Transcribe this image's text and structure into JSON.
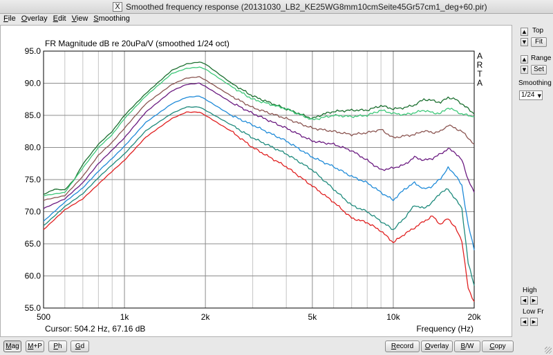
{
  "window": {
    "title": "Smoothed frequency response (20131030_LB2_KE25WG8mm10cmSeite45Gr57cm1_deg+60.pir)",
    "title_icon": "x11-icon"
  },
  "menubar": [
    {
      "label": "File",
      "underline": "F",
      "rest": "ile"
    },
    {
      "label": "Overlay",
      "underline": "O",
      "rest": "verlay"
    },
    {
      "label": "Edit",
      "underline": "E",
      "rest": "dit"
    },
    {
      "label": "View",
      "underline": "V",
      "rest": "iew"
    },
    {
      "label": "Smoothing",
      "underline": "S",
      "rest": "moothing"
    }
  ],
  "chart_data": {
    "type": "line",
    "title": "FR Magnitude dB re 20uPa/V (smoothed 1/24 oct)",
    "brand_letters": [
      "A",
      "R",
      "T",
      "A"
    ],
    "xscale": "log",
    "xlim": [
      500,
      20000
    ],
    "ylim": [
      55,
      95
    ],
    "x_ticks": [
      500,
      1000,
      2000,
      5000,
      10000,
      20000
    ],
    "x_tick_labels": [
      "500",
      "1k",
      "2k",
      "5k",
      "10k",
      "20k"
    ],
    "y_ticks": [
      55,
      60,
      65,
      70,
      75,
      80,
      85,
      90,
      95
    ],
    "y_tick_labels": [
      "55.0",
      "60.0",
      "65.0",
      "70.0",
      "75.0",
      "80.0",
      "85.0",
      "90.0",
      "95.0"
    ],
    "xlabel": "Frequency (Hz)",
    "grid": true,
    "cursor_readout": "Cursor: 504.2 Hz, 67.16 dB",
    "series": [
      {
        "color": "#1a6e2e",
        "points": [
          [
            500,
            72.7
          ],
          [
            550,
            73.5
          ],
          [
            600,
            73.4
          ],
          [
            650,
            75.0
          ],
          [
            700,
            77.4
          ],
          [
            800,
            80.5
          ],
          [
            900,
            82.5
          ],
          [
            1000,
            85.0
          ],
          [
            1200,
            88.4
          ],
          [
            1500,
            92.0
          ],
          [
            1700,
            93.0
          ],
          [
            1900,
            93.3
          ],
          [
            2000,
            93.0
          ],
          [
            2500,
            90.0
          ],
          [
            3000,
            88.0
          ],
          [
            4000,
            86.0
          ],
          [
            5000,
            84.5
          ],
          [
            5500,
            85.2
          ],
          [
            6000,
            85.6
          ],
          [
            7000,
            85.8
          ],
          [
            8000,
            85.8
          ],
          [
            9000,
            86.5
          ],
          [
            10000,
            86.0
          ],
          [
            11000,
            86.2
          ],
          [
            12000,
            86.6
          ],
          [
            13000,
            87.5
          ],
          [
            14000,
            87.3
          ],
          [
            15000,
            87.0
          ],
          [
            16000,
            87.8
          ],
          [
            17000,
            87.5
          ],
          [
            18000,
            86.8
          ],
          [
            19000,
            86.0
          ],
          [
            20000,
            85.2
          ]
        ]
      },
      {
        "color": "#3cc878",
        "points": [
          [
            500,
            72.5
          ],
          [
            600,
            73.0
          ],
          [
            700,
            76.8
          ],
          [
            800,
            80.0
          ],
          [
            900,
            82.0
          ],
          [
            1000,
            84.5
          ],
          [
            1200,
            88.0
          ],
          [
            1500,
            91.5
          ],
          [
            1700,
            92.3
          ],
          [
            1900,
            92.5
          ],
          [
            2000,
            92.2
          ],
          [
            2500,
            89.5
          ],
          [
            3000,
            87.5
          ],
          [
            4000,
            86.0
          ],
          [
            5000,
            84.3
          ],
          [
            6000,
            85.0
          ],
          [
            7000,
            84.8
          ],
          [
            8000,
            85.0
          ],
          [
            9000,
            85.8
          ],
          [
            10000,
            85.3
          ],
          [
            11000,
            85.1
          ],
          [
            12000,
            85.4
          ],
          [
            13000,
            85.8
          ],
          [
            14000,
            85.4
          ],
          [
            15000,
            85.3
          ],
          [
            16000,
            86.2
          ],
          [
            17000,
            85.7
          ],
          [
            18000,
            85.2
          ],
          [
            19000,
            85.0
          ],
          [
            20000,
            84.8
          ]
        ]
      },
      {
        "color": "#8a5450",
        "points": [
          [
            500,
            71.8
          ],
          [
            600,
            72.5
          ],
          [
            700,
            75.5
          ],
          [
            800,
            78.8
          ],
          [
            900,
            80.8
          ],
          [
            1000,
            83.0
          ],
          [
            1200,
            86.8
          ],
          [
            1500,
            89.8
          ],
          [
            1700,
            90.8
          ],
          [
            1900,
            91.0
          ],
          [
            2000,
            90.5
          ],
          [
            2500,
            88.0
          ],
          [
            3000,
            86.2
          ],
          [
            4000,
            84.5
          ],
          [
            5000,
            83.0
          ],
          [
            6000,
            82.5
          ],
          [
            7000,
            82.0
          ],
          [
            8000,
            82.3
          ],
          [
            9000,
            82.8
          ],
          [
            10000,
            81.5
          ],
          [
            11000,
            81.8
          ],
          [
            12000,
            82.0
          ],
          [
            13000,
            82.6
          ],
          [
            14000,
            82.3
          ],
          [
            15000,
            82.5
          ],
          [
            16000,
            83.5
          ],
          [
            17000,
            83.0
          ],
          [
            18000,
            82.5
          ],
          [
            19000,
            81.5
          ],
          [
            20000,
            80.5
          ]
        ]
      },
      {
        "color": "#6a1a80",
        "points": [
          [
            500,
            70.5
          ],
          [
            600,
            72.0
          ],
          [
            700,
            74.5
          ],
          [
            800,
            77.5
          ],
          [
            900,
            79.6
          ],
          [
            1000,
            81.5
          ],
          [
            1200,
            85.5
          ],
          [
            1500,
            88.8
          ],
          [
            1700,
            89.8
          ],
          [
            1900,
            90.0
          ],
          [
            2000,
            89.5
          ],
          [
            2500,
            87.0
          ],
          [
            3000,
            85.3
          ],
          [
            4000,
            83.0
          ],
          [
            5000,
            81.0
          ],
          [
            6000,
            80.5
          ],
          [
            7000,
            79.5
          ],
          [
            8000,
            78.0
          ],
          [
            9000,
            76.5
          ],
          [
            10000,
            76.8
          ],
          [
            11000,
            77.3
          ],
          [
            12000,
            78.5
          ],
          [
            13000,
            78.0
          ],
          [
            14000,
            78.3
          ],
          [
            15000,
            79.0
          ],
          [
            16000,
            79.8
          ],
          [
            17000,
            79.2
          ],
          [
            18000,
            78.0
          ],
          [
            19000,
            75.0
          ],
          [
            20000,
            73.0
          ]
        ]
      },
      {
        "color": "#1e8ad8",
        "points": [
          [
            500,
            68.5
          ],
          [
            600,
            71.5
          ],
          [
            700,
            73.7
          ],
          [
            800,
            76.3
          ],
          [
            900,
            78.3
          ],
          [
            1000,
            80.2
          ],
          [
            1200,
            83.9
          ],
          [
            1500,
            86.8
          ],
          [
            1700,
            87.8
          ],
          [
            1900,
            88.0
          ],
          [
            2000,
            87.5
          ],
          [
            2500,
            85.0
          ],
          [
            3000,
            83.5
          ],
          [
            4000,
            81.0
          ],
          [
            5000,
            78.5
          ],
          [
            6000,
            77.0
          ],
          [
            7000,
            75.5
          ],
          [
            8000,
            74.5
          ],
          [
            9000,
            73.0
          ],
          [
            10000,
            71.8
          ],
          [
            11000,
            73.5
          ],
          [
            12000,
            74.5
          ],
          [
            13000,
            73.5
          ],
          [
            14000,
            74.0
          ],
          [
            15000,
            75.2
          ],
          [
            16000,
            76.8
          ],
          [
            17000,
            75.8
          ],
          [
            18000,
            74.0
          ],
          [
            19000,
            68.0
          ],
          [
            20000,
            64.0
          ]
        ]
      },
      {
        "color": "#1e8a7c",
        "points": [
          [
            500,
            67.8
          ],
          [
            600,
            70.8
          ],
          [
            700,
            72.8
          ],
          [
            800,
            75.3
          ],
          [
            900,
            77.3
          ],
          [
            1000,
            79.0
          ],
          [
            1200,
            82.6
          ],
          [
            1500,
            85.3
          ],
          [
            1700,
            86.3
          ],
          [
            1900,
            86.3
          ],
          [
            2000,
            85.8
          ],
          [
            2500,
            83.5
          ],
          [
            3000,
            81.5
          ],
          [
            4000,
            79.0
          ],
          [
            5000,
            76.5
          ],
          [
            6000,
            73.5
          ],
          [
            7000,
            71.0
          ],
          [
            8000,
            70.0
          ],
          [
            9000,
            68.5
          ],
          [
            10000,
            67.2
          ],
          [
            11000,
            69.0
          ],
          [
            12000,
            71.0
          ],
          [
            13000,
            70.5
          ],
          [
            14000,
            71.5
          ],
          [
            15000,
            73.0
          ],
          [
            16000,
            73.5
          ],
          [
            17000,
            72.0
          ],
          [
            18000,
            70.5
          ],
          [
            19000,
            62.0
          ],
          [
            20000,
            58.5
          ]
        ]
      },
      {
        "color": "#e02020",
        "points": [
          [
            500,
            67.2
          ],
          [
            600,
            70.3
          ],
          [
            700,
            72.0
          ],
          [
            800,
            74.3
          ],
          [
            900,
            76.3
          ],
          [
            1000,
            78.0
          ],
          [
            1200,
            81.6
          ],
          [
            1500,
            84.5
          ],
          [
            1700,
            85.5
          ],
          [
            1900,
            85.5
          ],
          [
            2000,
            85.0
          ],
          [
            2500,
            82.5
          ],
          [
            3000,
            80.0
          ],
          [
            4000,
            77.0
          ],
          [
            5000,
            74.0
          ],
          [
            6000,
            71.5
          ],
          [
            7000,
            69.0
          ],
          [
            8000,
            68.3
          ],
          [
            9000,
            67.0
          ],
          [
            10000,
            65.2
          ],
          [
            11000,
            66.5
          ],
          [
            12000,
            67.5
          ],
          [
            13000,
            68.5
          ],
          [
            14000,
            69.3
          ],
          [
            15000,
            68.0
          ],
          [
            16000,
            69.0
          ],
          [
            17000,
            67.5
          ],
          [
            18000,
            65.5
          ],
          [
            19000,
            58.0
          ],
          [
            20000,
            56.0
          ]
        ]
      }
    ]
  },
  "rightpanel": {
    "top_label": "Top",
    "fit_label": "Fit",
    "range_label": "Range",
    "set_label": "Set",
    "smoothing_label": "Smoothing",
    "smoothing_value": "1/24",
    "high_label": "High",
    "low_label": "Low Fr",
    "up_glyph": "▲",
    "down_glyph": "▼",
    "left_glyph": "◀",
    "right_glyph": "▶",
    "caret_glyph": "▼"
  },
  "bottombar": {
    "left_tabs": [
      {
        "name": "tab-mag",
        "u": "M",
        "rest": "ag",
        "active": true
      },
      {
        "name": "tab-mp",
        "u": "M",
        "rest": "+P",
        "active": false
      },
      {
        "name": "tab-ph",
        "u": "P",
        "rest": "h",
        "active": false
      },
      {
        "name": "tab-gd",
        "u": "G",
        "rest": "d",
        "active": false
      }
    ],
    "right_buttons": [
      {
        "name": "record-button",
        "u": "R",
        "rest": "ecord"
      },
      {
        "name": "overlay-button",
        "u": "O",
        "rest": "verlay"
      },
      {
        "name": "bw-button",
        "u": "B",
        "rest": "/W"
      },
      {
        "name": "copy-button",
        "u": "C",
        "rest": "opy"
      }
    ]
  }
}
